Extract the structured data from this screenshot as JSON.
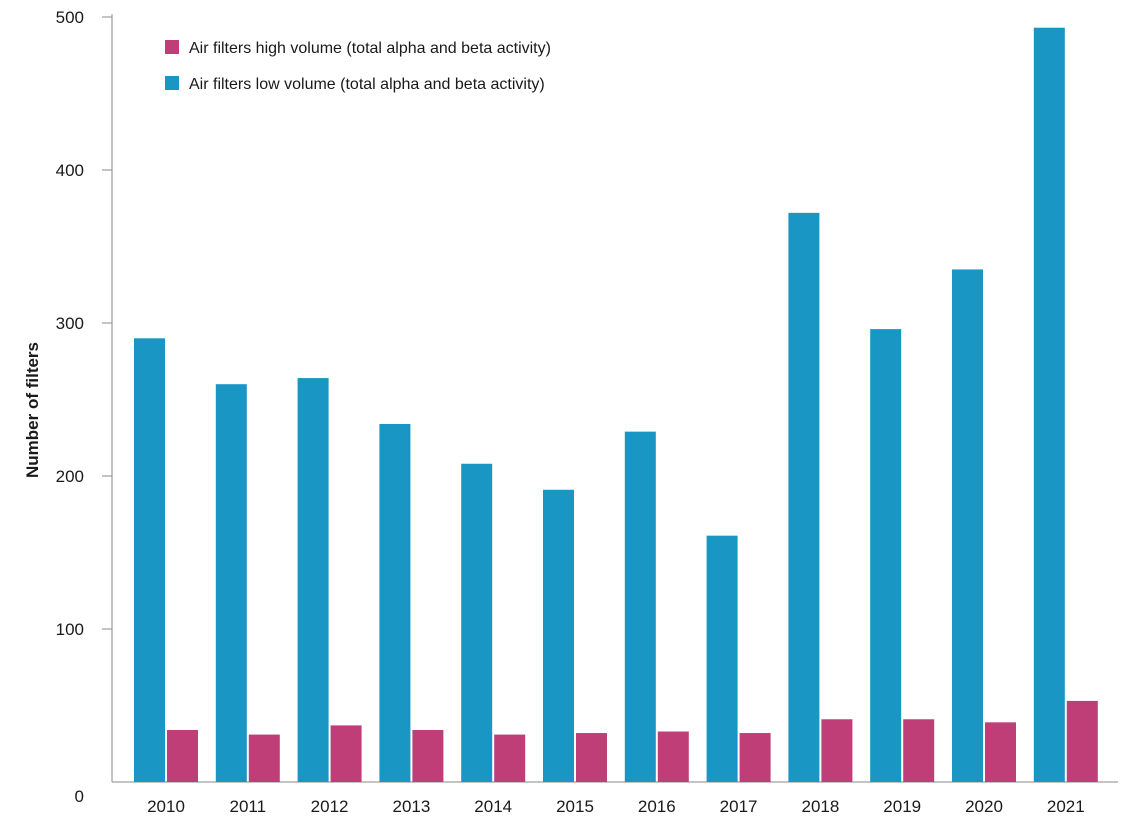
{
  "chart_data": {
    "type": "bar",
    "title": "",
    "xlabel": "",
    "ylabel": "Number of filters",
    "ylim": [
      0,
      500
    ],
    "yticks": [
      0,
      100,
      200,
      300,
      400,
      500
    ],
    "grid": false,
    "legend_position": "top-left",
    "categories": [
      "2010",
      "2011",
      "2012",
      "2013",
      "2014",
      "2015",
      "2016",
      "2017",
      "2018",
      "2019",
      "2020",
      "2021"
    ],
    "series": [
      {
        "name": "Air filters low volume (total alpha and beta activity)",
        "color": "#1996c4",
        "values": [
          290,
          260,
          264,
          234,
          208,
          191,
          229,
          161,
          372,
          296,
          335,
          493
        ]
      },
      {
        "name": "Air filters high volume (total alpha and beta activity)",
        "color": "#c03e78",
        "values": [
          34,
          31,
          37,
          34,
          31,
          32,
          33,
          32,
          41,
          41,
          39,
          53
        ]
      }
    ],
    "legend_order": [
      1,
      0
    ]
  }
}
